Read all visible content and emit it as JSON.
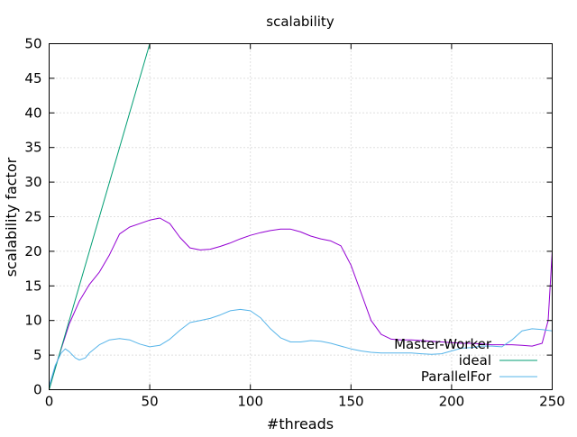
{
  "chart_data": {
    "type": "line",
    "title": "scalability",
    "xlabel": "#threads",
    "ylabel": "scalability factor",
    "xlim": [
      0,
      250
    ],
    "ylim": [
      0,
      50
    ],
    "xticks": [
      0,
      50,
      100,
      150,
      200,
      250
    ],
    "yticks": [
      0,
      5,
      10,
      15,
      20,
      25,
      30,
      35,
      40,
      45,
      50
    ],
    "grid": true,
    "legend_position": "bottom-right",
    "series": [
      {
        "name": "Master-Worker",
        "color": "#9400d3",
        "x": [
          0,
          5,
          10,
          15,
          20,
          25,
          30,
          35,
          40,
          45,
          50,
          55,
          60,
          65,
          70,
          75,
          80,
          85,
          90,
          95,
          100,
          105,
          110,
          115,
          120,
          125,
          130,
          135,
          140,
          145,
          150,
          155,
          160,
          165,
          170,
          175,
          180,
          185,
          190,
          195,
          200,
          205,
          210,
          215,
          220,
          225,
          230,
          235,
          240,
          245,
          248,
          250
        ],
        "y": [
          0.5,
          5,
          9.5,
          12.8,
          15.2,
          17,
          19.5,
          22.5,
          23.5,
          24,
          24.5,
          24.8,
          24,
          22,
          20.5,
          20.2,
          20.3,
          20.7,
          21.2,
          21.8,
          22.3,
          22.7,
          23,
          23.2,
          23.2,
          22.8,
          22.2,
          21.8,
          21.5,
          20.8,
          18,
          14,
          10,
          8,
          7.3,
          7.2,
          7.2,
          7.1,
          7,
          6.9,
          6.8,
          6.7,
          6.7,
          6.6,
          6.5,
          6.5,
          6.5,
          6.4,
          6.3,
          6.7,
          10,
          20
        ]
      },
      {
        "name": "ideal",
        "color": "#009e73",
        "x": [
          0,
          50
        ],
        "y": [
          0,
          50
        ]
      },
      {
        "name": "ParallelFor",
        "color": "#56b4e9",
        "x": [
          0,
          3,
          6,
          8,
          10,
          13,
          15,
          18,
          20,
          25,
          30,
          35,
          40,
          45,
          50,
          55,
          60,
          65,
          70,
          75,
          80,
          85,
          90,
          95,
          100,
          105,
          110,
          115,
          120,
          125,
          130,
          135,
          140,
          145,
          150,
          155,
          160,
          165,
          170,
          175,
          180,
          185,
          190,
          195,
          200,
          205,
          210,
          215,
          220,
          225,
          230,
          235,
          240,
          245,
          250
        ],
        "y": [
          0.5,
          3.5,
          5.3,
          5.9,
          5.5,
          4.6,
          4.3,
          4.6,
          5.3,
          6.5,
          7.2,
          7.4,
          7.2,
          6.6,
          6.2,
          6.4,
          7.3,
          8.6,
          9.7,
          10,
          10.3,
          10.8,
          11.4,
          11.6,
          11.4,
          10.4,
          8.8,
          7.5,
          6.9,
          6.9,
          7.1,
          7,
          6.7,
          6.3,
          5.9,
          5.6,
          5.4,
          5.3,
          5.3,
          5.3,
          5.3,
          5.2,
          5.1,
          5.2,
          5.6,
          6,
          6.1,
          6.3,
          6.3,
          6.2,
          7.2,
          8.5,
          8.8,
          8.7,
          8.5
        ]
      }
    ]
  }
}
